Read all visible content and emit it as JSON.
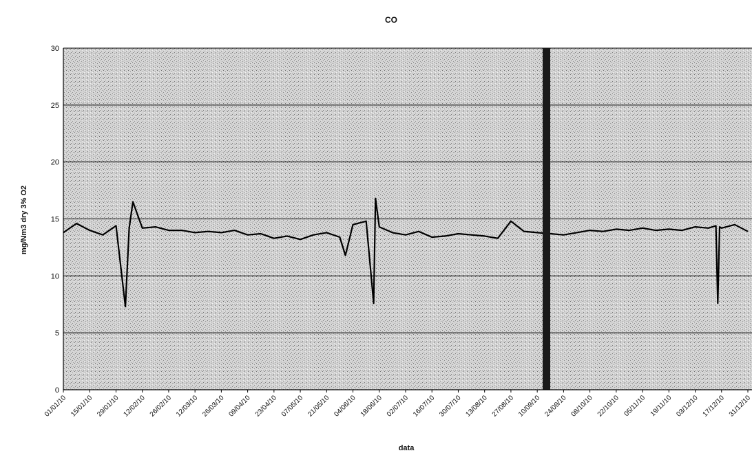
{
  "chart_data": {
    "type": "line",
    "title": "CO",
    "xlabel": "data",
    "ylabel": "mg/Nm3 dry 3% O2",
    "ylim": [
      0,
      30
    ],
    "yticks": [
      "0",
      "5",
      "10",
      "15",
      "20",
      "25",
      "30"
    ],
    "grid": true,
    "xticks": [
      "01/01/10",
      "15/01/10",
      "29/01/10",
      "12/02/10",
      "26/02/10",
      "12/03/10",
      "26/03/10",
      "09/04/10",
      "23/04/10",
      "07/05/10",
      "21/05/10",
      "04/06/10",
      "18/06/10",
      "02/07/10",
      "16/07/10",
      "30/07/10",
      "13/08/10",
      "27/08/10",
      "10/09/10",
      "24/09/10",
      "08/10/10",
      "22/10/10",
      "05/11/10",
      "19/11/10",
      "03/12/10",
      "17/12/10",
      "31/12/10"
    ],
    "colors": {
      "line": "#000000",
      "plot_background": "#bdbdbd"
    },
    "series": [
      {
        "x": [
          "01/01/10",
          "08/01/10",
          "15/01/10",
          "22/01/10",
          "29/01/10",
          "03/02/10",
          "05/02/10",
          "07/02/10",
          "12/02/10",
          "19/02/10",
          "26/02/10",
          "05/03/10",
          "12/03/10",
          "19/03/10",
          "26/03/10",
          "02/04/10",
          "09/04/10",
          "16/04/10",
          "23/04/10",
          "30/04/10",
          "07/05/10",
          "14/05/10",
          "21/05/10",
          "28/05/10",
          "31/05/10",
          "04/06/10",
          "11/06/10",
          "15/06/10",
          "16/06/10",
          "18/06/10",
          "25/06/10",
          "02/07/10",
          "09/07/10",
          "16/07/10",
          "23/07/10",
          "30/07/10",
          "06/08/10",
          "13/08/10",
          "20/08/10",
          "27/08/10",
          "03/09/10",
          "10/09/10",
          "17/09/10",
          "24/09/10",
          "01/10/10",
          "08/10/10",
          "15/10/10",
          "22/10/10",
          "29/10/10",
          "05/11/10",
          "12/11/10",
          "19/11/10",
          "26/11/10",
          "03/12/10",
          "10/12/10",
          "14/12/10",
          "15/12/10",
          "16/12/10",
          "17/12/10",
          "24/12/10",
          "31/12/10"
        ],
        "values": [
          13.8,
          14.6,
          14.0,
          13.6,
          14.4,
          7.3,
          14.2,
          16.5,
          14.2,
          14.3,
          14.0,
          14.0,
          13.8,
          13.9,
          13.8,
          14.0,
          13.6,
          13.7,
          13.3,
          13.5,
          13.2,
          13.6,
          13.8,
          13.4,
          11.8,
          14.5,
          14.8,
          7.6,
          16.8,
          14.3,
          13.8,
          13.6,
          13.9,
          13.4,
          13.5,
          13.7,
          13.6,
          13.5,
          13.3,
          14.8,
          13.9,
          13.8,
          13.7,
          13.6,
          13.8,
          14.0,
          13.9,
          14.1,
          14.0,
          14.2,
          14.0,
          14.1,
          14.0,
          14.3,
          14.2,
          14.4,
          7.6,
          14.3,
          14.2,
          14.5,
          13.9
        ]
      }
    ]
  }
}
